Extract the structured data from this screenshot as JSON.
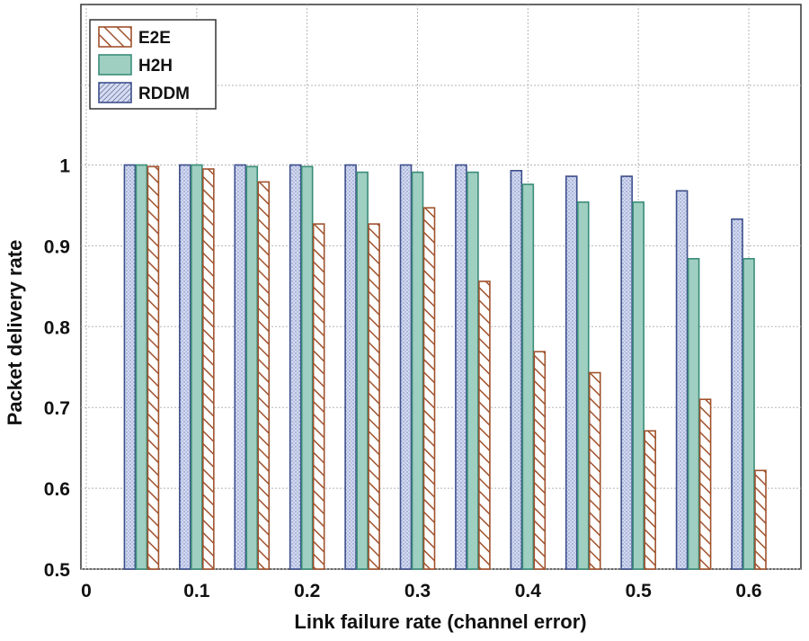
{
  "chart_data": {
    "type": "bar",
    "title": "",
    "xlabel": "Link failure rate (channel error)",
    "ylabel": "Packet delivery rate",
    "xticks": [
      "0",
      "0.1",
      "0.2",
      "0.3",
      "0.4",
      "0.5",
      "0.6"
    ],
    "yticks": [
      "0.5",
      "0.6",
      "0.7",
      "0.8",
      "0.9",
      "1"
    ],
    "ylim": [
      0.5,
      1.05
    ],
    "categories": [
      "0.05",
      "0.1",
      "0.15",
      "0.2",
      "0.25",
      "0.3",
      "0.35",
      "0.4",
      "0.45",
      "0.5",
      "0.55",
      "0.6"
    ],
    "series": [
      {
        "name": "RDDM",
        "values": [
          1.0,
          1.0,
          1.0,
          1.0,
          1.0,
          1.0,
          1.0,
          0.993,
          0.986,
          0.986,
          0.968,
          0.933
        ],
        "color": "#3d4f8c",
        "fill": "#c9d1ec"
      },
      {
        "name": "H2H",
        "values": [
          1.0,
          1.0,
          0.998,
          0.998,
          0.991,
          0.991,
          0.991,
          0.976,
          0.954,
          0.954,
          0.884,
          0.884
        ],
        "color": "#3a8c7a",
        "fill": "#9fcfc0"
      },
      {
        "name": "E2E",
        "values": [
          0.998,
          0.995,
          0.979,
          0.927,
          0.927,
          0.947,
          0.856,
          0.769,
          0.743,
          0.671,
          0.71,
          0.622
        ],
        "color": "#a0522d",
        "fill": "#ffffff"
      }
    ],
    "grid": true,
    "legend": "top-left"
  }
}
